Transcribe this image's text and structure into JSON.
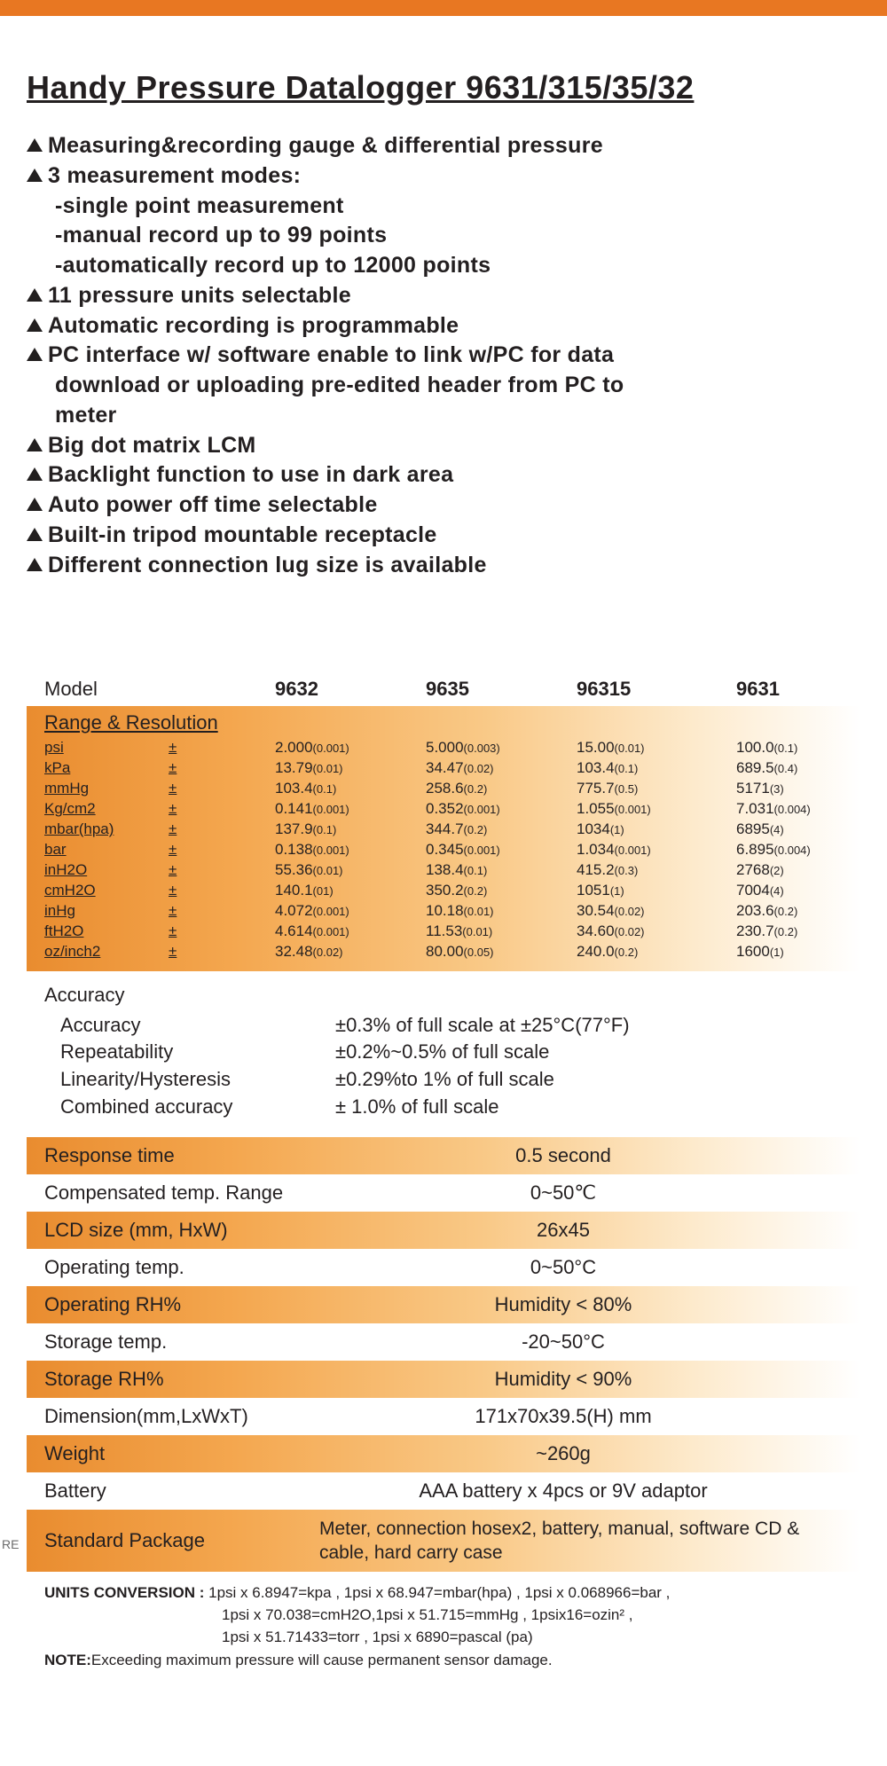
{
  "colors": {
    "accent": "#e87722",
    "text": "#231f20",
    "grad_start": "#e98c2f",
    "grad_end": "#ffffff"
  },
  "title": "Handy Pressure Datalogger 9631/315/35/32",
  "features": [
    {
      "type": "bullet",
      "text": "Measuring&recording gauge & differential pressure"
    },
    {
      "type": "bullet",
      "text": "3 measurement modes:"
    },
    {
      "type": "sub",
      "text": "-single point measurement"
    },
    {
      "type": "sub",
      "text": "-manual record up to 99 points"
    },
    {
      "type": "sub",
      "text": "-automatically record up to 12000 points"
    },
    {
      "type": "bullet",
      "text": "11 pressure units selectable"
    },
    {
      "type": "bullet",
      "text": "Automatic recording is programmable"
    },
    {
      "type": "bullet",
      "text": "PC interface w/ software enable to link w/PC for data"
    },
    {
      "type": "sub",
      "text": "download or uploading pre-edited header from PC to"
    },
    {
      "type": "sub",
      "text": "meter"
    },
    {
      "type": "bullet",
      "text": "Big dot matrix LCM"
    },
    {
      "type": "bullet",
      "text": "Backlight function to use in dark area"
    },
    {
      "type": "bullet",
      "text": "Auto power off time selectable"
    },
    {
      "type": "bullet",
      "text": "Built-in tripod mountable receptacle"
    },
    {
      "type": "bullet",
      "text": "Different connection lug size is available"
    }
  ],
  "model_header": {
    "label": "Model",
    "cols": [
      "9632",
      "9635",
      "96315",
      "9631"
    ]
  },
  "range": {
    "title": "Range & Resolution",
    "pm": "±",
    "rows": [
      {
        "unit": "psi",
        "v": [
          "2.000",
          "5.000",
          "15.00",
          "100.0"
        ],
        "r": [
          "(0.001)",
          "(0.003)",
          "(0.01)",
          "(0.1)"
        ]
      },
      {
        "unit": "kPa",
        "v": [
          "13.79",
          "34.47",
          "103.4",
          "689.5"
        ],
        "r": [
          "(0.01)",
          "(0.02)",
          "(0.1)",
          "(0.4)"
        ]
      },
      {
        "unit": "mmHg",
        "v": [
          "103.4",
          "258.6",
          "775.7",
          "5171"
        ],
        "r": [
          "(0.1)",
          "(0.2)",
          "(0.5)",
          "(3)"
        ]
      },
      {
        "unit": "Kg/cm2",
        "v": [
          "0.141",
          "0.352",
          "1.055",
          "7.031"
        ],
        "r": [
          "(0.001)",
          "(0.001)",
          "(0.001)",
          "(0.004)"
        ]
      },
      {
        "unit": "mbar(hpa)",
        "v": [
          "137.9",
          "344.7",
          "1034",
          "6895"
        ],
        "r": [
          "(0.1)",
          "(0.2)",
          "(1)",
          "(4)"
        ]
      },
      {
        "unit": "bar",
        "v": [
          "0.138",
          "0.345",
          "1.034",
          "6.895"
        ],
        "r": [
          "(0.001)",
          "(0.001)",
          "(0.001)",
          "(0.004)"
        ]
      },
      {
        "unit": "inH2O",
        "v": [
          "55.36",
          "138.4",
          "415.2",
          "2768"
        ],
        "r": [
          "(0.01)",
          "(0.1)",
          "(0.3)",
          "(2)"
        ]
      },
      {
        "unit": "cmH2O",
        "v": [
          "140.1",
          "350.2",
          "1051",
          "7004"
        ],
        "r": [
          "(01)",
          "(0.2)",
          "(1)",
          "(4)"
        ]
      },
      {
        "unit": "inHg",
        "v": [
          "4.072",
          "10.18",
          "30.54",
          "203.6"
        ],
        "r": [
          "(0.001)",
          "(0.01)",
          "(0.02)",
          "(0.2)"
        ]
      },
      {
        "unit": "ftH2O",
        "v": [
          "4.614",
          "11.53",
          "34.60",
          "230.7"
        ],
        "r": [
          "(0.001)",
          "(0.01)",
          "(0.02)",
          "(0.2)"
        ]
      },
      {
        "unit": "oz/inch2",
        "v": [
          "32.48",
          "80.00",
          "240.0",
          "1600"
        ],
        "r": [
          "(0.02)",
          "(0.05)",
          "(0.2)",
          "(1)"
        ]
      }
    ]
  },
  "accuracy": {
    "title": "Accuracy",
    "rows": [
      {
        "k": "Accuracy",
        "v": "±0.3% of full scale at ±25°C(77°F)"
      },
      {
        "k": "Repeatability",
        "v": "±0.2%~0.5% of full scale"
      },
      {
        "k": "Linearity/Hysteresis",
        "v": "±0.29%to 1% of full scale"
      },
      {
        "k": "Combined accuracy",
        "v": "± 1.0% of full scale"
      }
    ]
  },
  "spec_rows": [
    {
      "k": "Response time",
      "v": "0.5 second",
      "orange": true
    },
    {
      "k": "Compensated temp. Range",
      "v": "0~50℃",
      "orange": false
    },
    {
      "k": "LCD size (mm, HxW)",
      "v": "26x45",
      "orange": true
    },
    {
      "k": "Operating temp.",
      "v": "0~50°C",
      "orange": false
    },
    {
      "k": "Operating RH%",
      "v": "Humidity < 80%",
      "orange": true
    },
    {
      "k": "Storage temp.",
      "v": "-20~50°C",
      "orange": false
    },
    {
      "k": "Storage RH%",
      "v": "Humidity < 90%",
      "orange": true
    },
    {
      "k": "Dimension(mm,LxWxT)",
      "v": "171x70x39.5(H) mm",
      "orange": false
    },
    {
      "k": "Weight",
      "v": "~260g",
      "orange": true
    },
    {
      "k": "Battery",
      "v": "AAA battery x 4pcs or 9V adaptor",
      "orange": false
    }
  ],
  "package": {
    "edge": "RE",
    "k": "Standard Package",
    "v": "Meter, connection hosex2, battery, manual, software CD & cable, hard carry case"
  },
  "footnotes": {
    "label": "UNITS CONVERSION : ",
    "line1": "1psi x 6.8947=kpa , 1psi x 68.947=mbar(hpa) , 1psi x 0.068966=bar ,",
    "line2": "1psi x 70.038=cmH2O,1psi x 51.715=mmHg ,  1psix16=ozin² ,",
    "line3": "1psi x 51.71433=torr ,  1psi x 6890=pascal (pa)",
    "note_label": "NOTE:",
    "note": "Exceeding maximum pressure will cause permanent sensor damage."
  }
}
